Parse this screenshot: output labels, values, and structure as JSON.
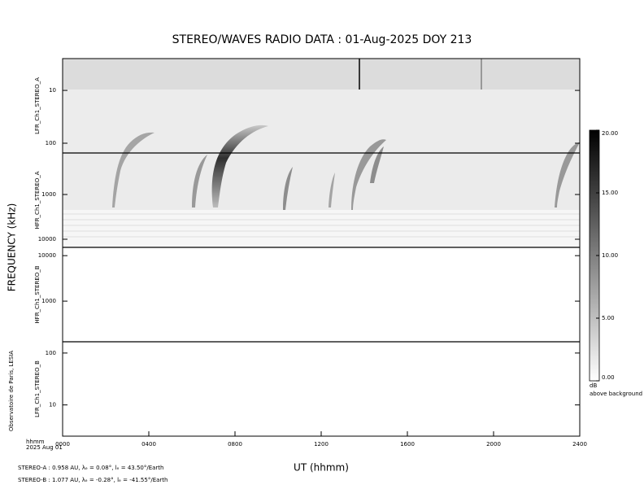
{
  "chart_data": {
    "type": "spectrogram",
    "title": "STEREO/WAVES  RADIO  DATA : 01-Aug-2025  DOY 213",
    "ylabel": "FREQUENCY (kHz)",
    "xlabel": "UT (hhmm)",
    "x_unit_label": "hhmm",
    "date_label": "2025 Aug 01",
    "credit": "Observatoire de Paris, LESIA",
    "xlim": [
      0,
      2400
    ],
    "xticks": [
      {
        "value": 0,
        "label": "0000"
      },
      {
        "value": 400,
        "label": "0400"
      },
      {
        "value": 800,
        "label": "0800"
      },
      {
        "value": 1200,
        "label": "1200"
      },
      {
        "value": 1600,
        "label": "1600"
      },
      {
        "value": 2000,
        "label": "2000"
      },
      {
        "value": 2400,
        "label": "2400"
      }
    ],
    "log_y": true,
    "panels": [
      {
        "label": "LFR_Ch1_STEREO_A",
        "ylim": [
          153,
          2.5
        ],
        "yticks": [
          10,
          100
        ]
      },
      {
        "label": "HFR_Ch1_STEREO_A",
        "ylim": [
          15200,
          118
        ],
        "yticks": [
          1000,
          10000
        ]
      },
      {
        "label": "HFR_Ch1_STEREO_B",
        "ylim": [
          128,
          15200
        ],
        "yticks": [
          10000,
          1000
        ]
      },
      {
        "label": "LFR_Ch1_STEREO_B",
        "ylim": [
          2.5,
          165
        ],
        "yticks": [
          100,
          10
        ]
      }
    ],
    "colorbar": {
      "unit": "dB",
      "label": "above background",
      "zlim": [
        0,
        20
      ],
      "ticks": [
        {
          "value": 20,
          "label": "20.00"
        },
        {
          "value": 15,
          "label": "15.00"
        },
        {
          "value": 10,
          "label": "10.00"
        },
        {
          "value": 5,
          "label": "5.00"
        },
        {
          "value": 0,
          "label": "0.00"
        }
      ]
    },
    "footer": [
      "STEREO-A : 0.958 AU, λₑ = 0.08°, lₑ = 43.50°/Earth",
      "STEREO-B : 1.077 AU, λₑ = -0.28°, lₑ = -41.55°/Earth"
    ]
  }
}
